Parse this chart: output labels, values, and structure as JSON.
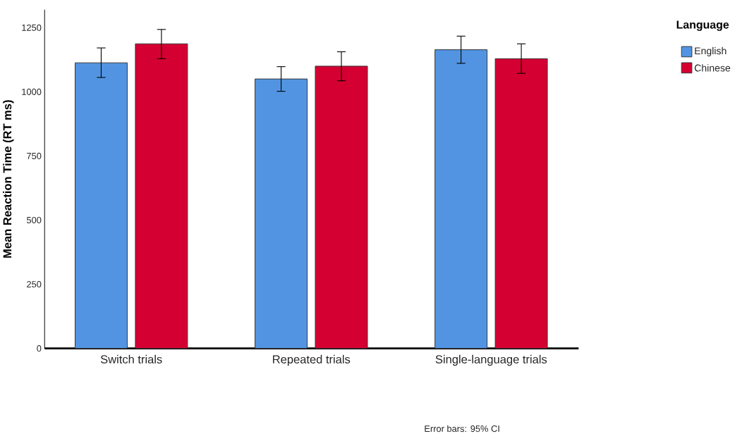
{
  "chart_data": {
    "type": "bar",
    "ylabel": "Mean Reaction Time (RT ms)",
    "legend_title": "Language",
    "categories": [
      "Switch trials",
      "Repeated trials",
      "Single-language trials"
    ],
    "series": [
      {
        "name": "English",
        "color": "#5294e2",
        "values": [
          1113,
          1050,
          1164
        ],
        "errors": [
          [
            1056,
            1171
          ],
          [
            1002,
            1098
          ],
          [
            1111,
            1217
          ]
        ]
      },
      {
        "name": "Chinese",
        "color": "#d50032",
        "values": [
          1187,
          1100,
          1129
        ],
        "errors": [
          [
            1129,
            1243
          ],
          [
            1043,
            1156
          ],
          [
            1072,
            1187
          ]
        ]
      }
    ],
    "ylim": [
      0,
      1320
    ],
    "yticks": [
      0,
      250,
      500,
      750,
      1000,
      1250
    ],
    "grid": false,
    "legend": "top right",
    "annotations": [
      "Error bars: 95% CI"
    ]
  }
}
